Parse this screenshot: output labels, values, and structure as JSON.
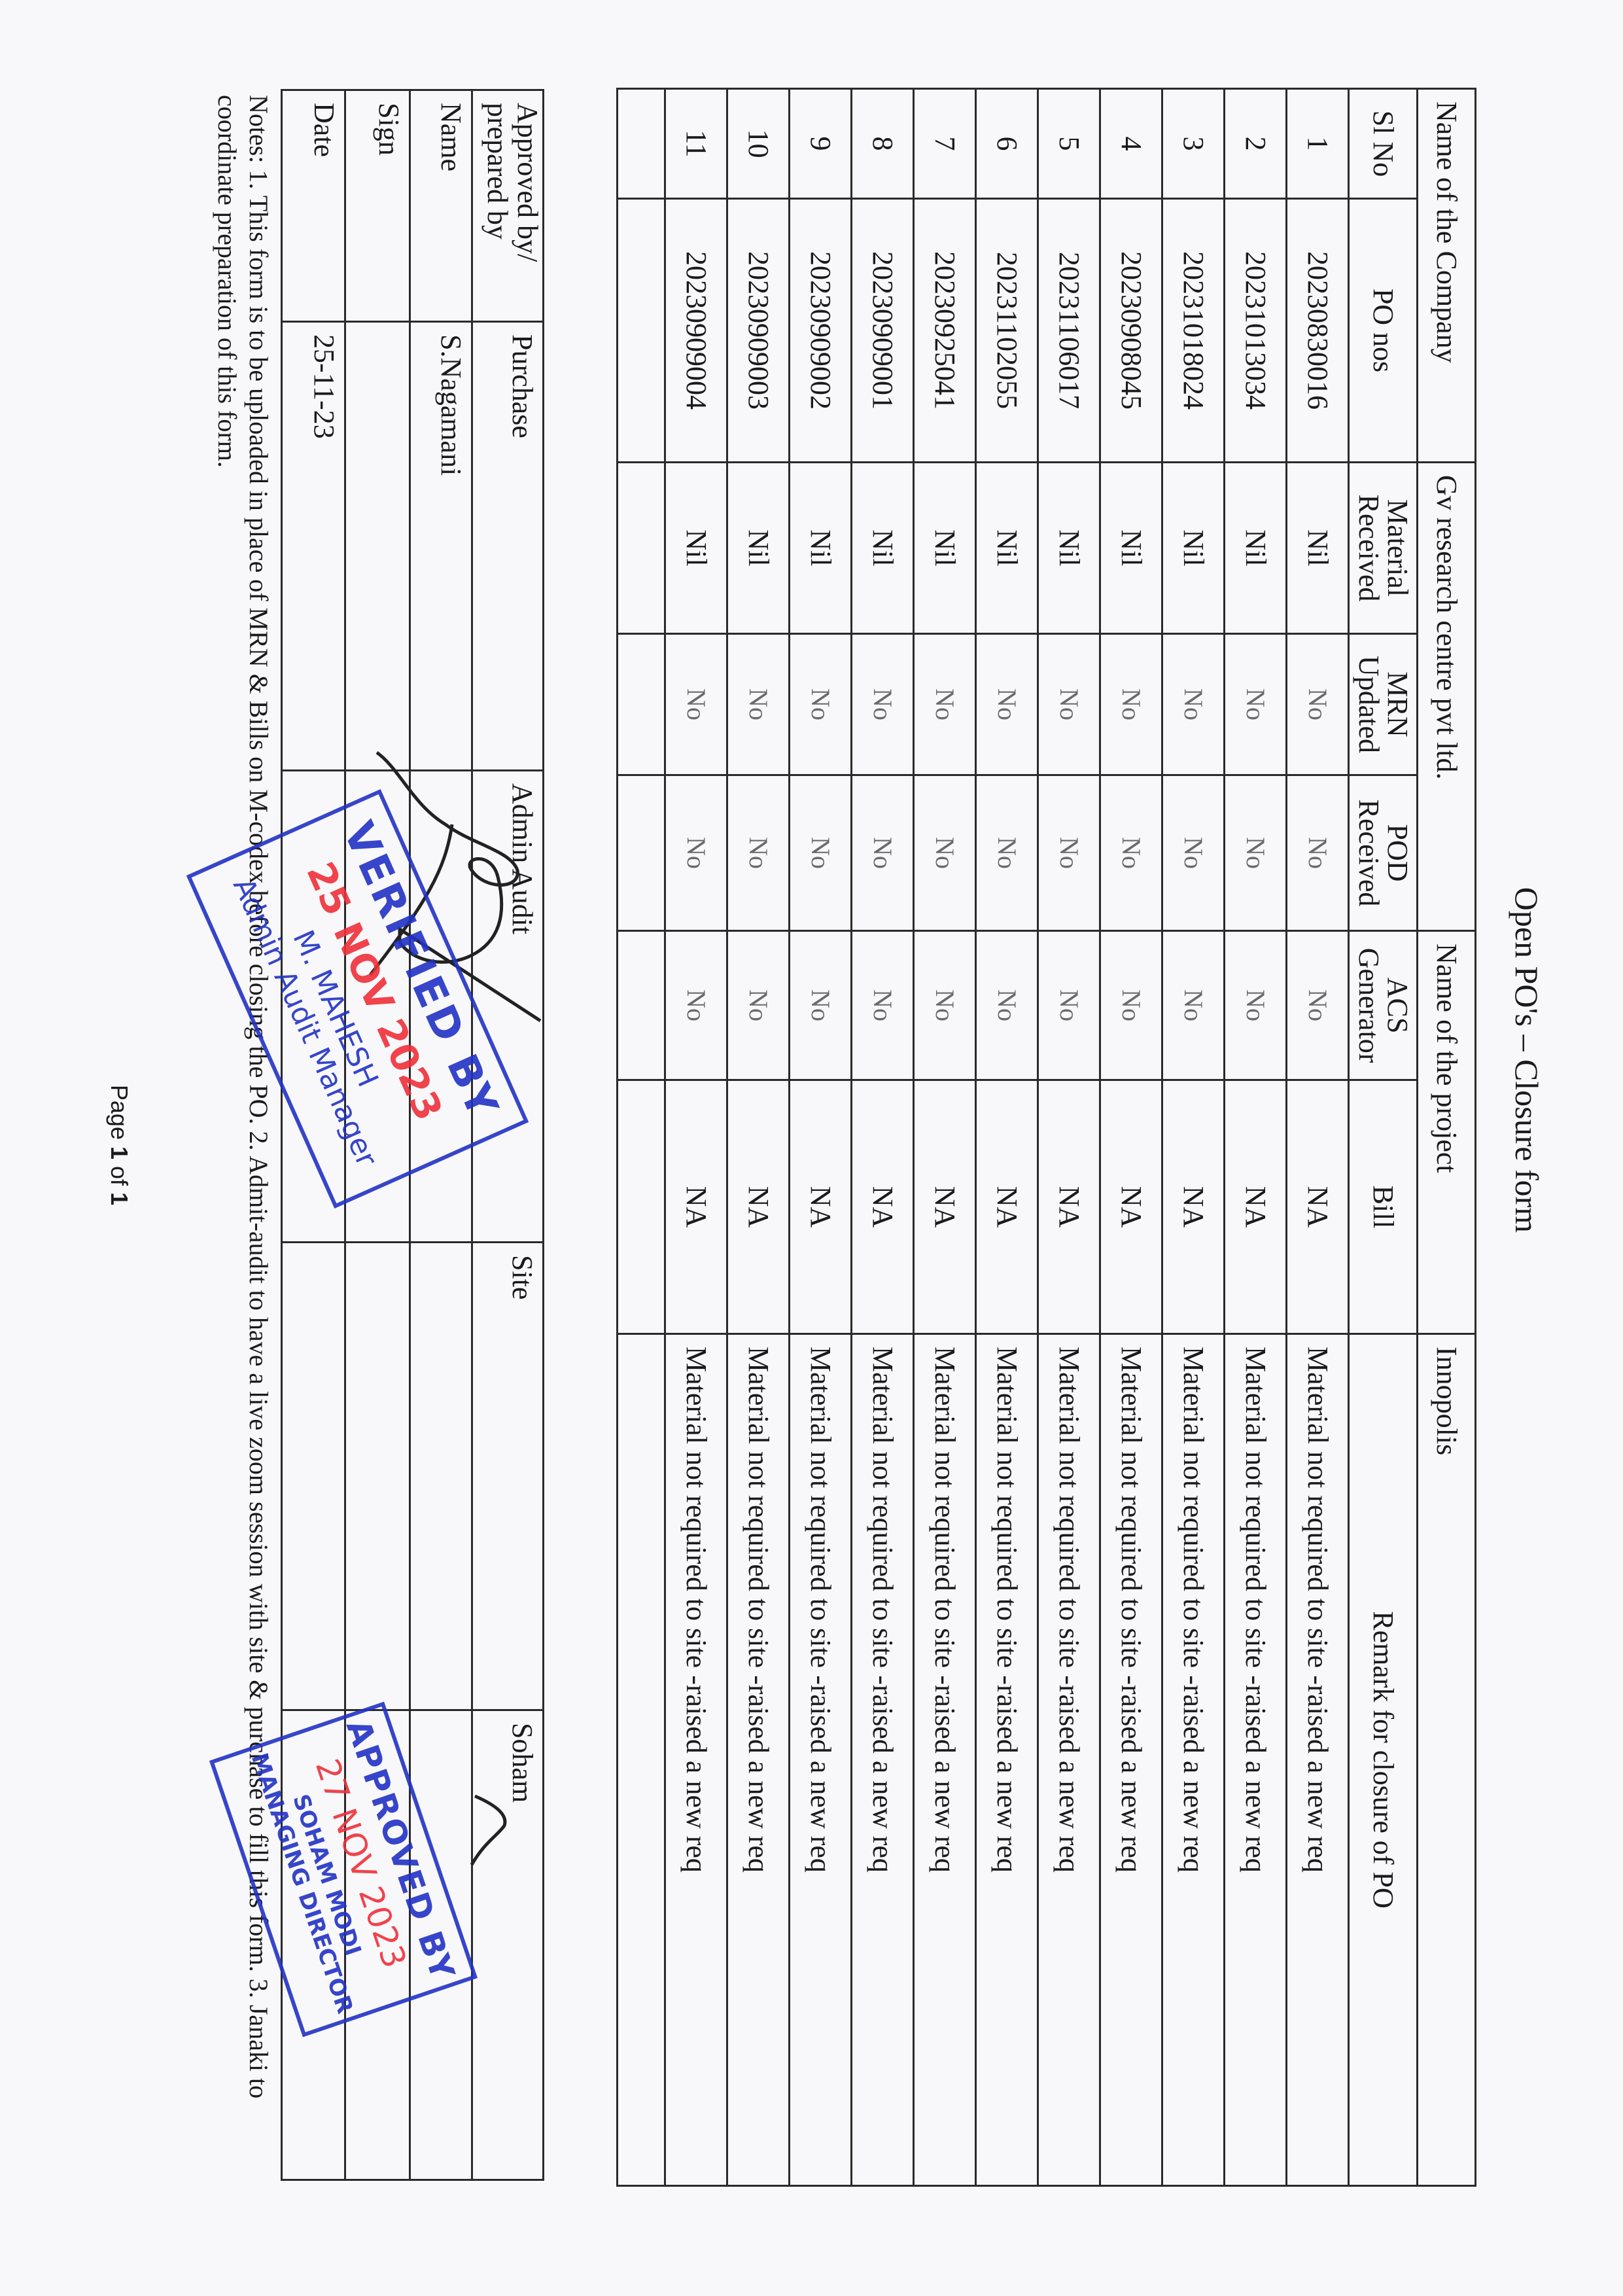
{
  "title": "Open PO's – Closure form",
  "header": {
    "company_label": "Name of the Company",
    "company_value": "Gv research centre pvt ltd.",
    "project_label": "Name of the project",
    "project_value": "Innopolis"
  },
  "columns": [
    "Sl No",
    "PO nos",
    "Material Received",
    "MRN Updated",
    "POD Received",
    "ACS Generator",
    "Bill",
    "Remark for closure of PO"
  ],
  "rows": [
    {
      "sl": "1",
      "po": "20230830016",
      "material": "Nil",
      "mrn": "No",
      "pod": "No",
      "acs": "No",
      "bill": "NA",
      "remark": "Material not required to site -raised a new req"
    },
    {
      "sl": "2",
      "po": "20231013034",
      "material": "Nil",
      "mrn": "No",
      "pod": "No",
      "acs": "No",
      "bill": "NA",
      "remark": "Material not required to site -raised a new req"
    },
    {
      "sl": "3",
      "po": "20231018024",
      "material": "Nil",
      "mrn": "No",
      "pod": "No",
      "acs": "No",
      "bill": "NA",
      "remark": "Material not required to site -raised a new req"
    },
    {
      "sl": "4",
      "po": "20230908045",
      "material": "Nil",
      "mrn": "No",
      "pod": "No",
      "acs": "No",
      "bill": "NA",
      "remark": "Material not required to site -raised a new req"
    },
    {
      "sl": "5",
      "po": "20231106017",
      "material": "Nil",
      "mrn": "No",
      "pod": "No",
      "acs": "No",
      "bill": "NA",
      "remark": "Material not required to site -raised a new req"
    },
    {
      "sl": "6",
      "po": "20231102055",
      "material": "Nil",
      "mrn": "No",
      "pod": "No",
      "acs": "No",
      "bill": "NA",
      "remark": "Material not required to site -raised a new req"
    },
    {
      "sl": "7",
      "po": "20230925041",
      "material": "Nil",
      "mrn": "No",
      "pod": "No",
      "acs": "No",
      "bill": "NA",
      "remark": "Material not required to site -raised a new req"
    },
    {
      "sl": "8",
      "po": "20230909001",
      "material": "Nil",
      "mrn": "No",
      "pod": "No",
      "acs": "No",
      "bill": "NA",
      "remark": "Material not required to site -raised a new req"
    },
    {
      "sl": "9",
      "po": "20230909002",
      "material": "Nil",
      "mrn": "No",
      "pod": "No",
      "acs": "No",
      "bill": "NA",
      "remark": "Material not required to site -raised a new req"
    },
    {
      "sl": "10",
      "po": "20230909003",
      "material": "Nil",
      "mrn": "No",
      "pod": "No",
      "acs": "No",
      "bill": "NA",
      "remark": "Material not required to site -raised a new req"
    },
    {
      "sl": "11",
      "po": "20230909004",
      "material": "Nil",
      "mrn": "No",
      "pod": "No",
      "acs": "No",
      "bill": "NA",
      "remark": "Material not required to site -raised a new req"
    }
  ],
  "signoff": {
    "approved_label_1": "Approved by/",
    "approved_label_2": "prepared by",
    "purchase": "Purchase",
    "admin_audit": "Admin Audit",
    "site": "Site",
    "soham": "Soham",
    "name_label": "Name",
    "name_purchase": "S.Nagamani",
    "sign_label": "Sign",
    "date_label": "Date",
    "date_purchase": "25-11-23"
  },
  "stamps": {
    "verified": {
      "title": "VERIFIED BY",
      "date": "25 NOV 2023",
      "name": "M. MAHESH",
      "role": "Admin Audit Manager"
    },
    "approved": {
      "title": "APPROVED BY",
      "date": "27 NOV 2023",
      "name": "SOHAM MODI",
      "role": "MANAGING DIRECTOR"
    }
  },
  "notes": "Notes: 1. This form is to be uploaded in place of MRN & Bills on M-codex before closing the PO. 2. Admit-audit to have a live zoom session with site & purchase to fill this form. 3. Janaki to coordinate preparation of this form.",
  "footer": {
    "page_word": "Page",
    "page_num": "1",
    "of_word": "of",
    "page_total": "1"
  },
  "colors": {
    "stamp_blue": "#2232c4",
    "stamp_red": "#f0303a",
    "ink": "#1a1a1a"
  }
}
